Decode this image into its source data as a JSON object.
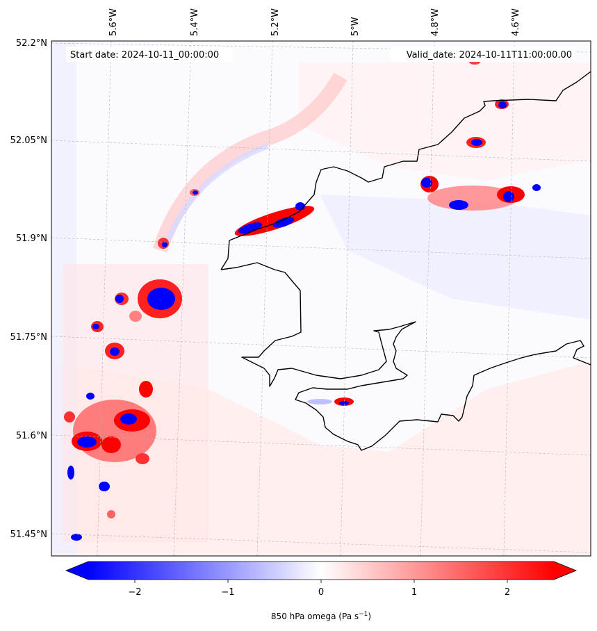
{
  "header": {
    "start_date": "Start date: 2024-10-11_00:00:00",
    "valid_date": "Valid_date: 2024-10-11T11:00:00.00"
  },
  "axes": {
    "longitude_labels": [
      "5.6°W",
      "5.4°W",
      "5.2°W",
      "5°W",
      "4.8°W",
      "4.6°W"
    ],
    "latitude_labels": [
      "52.2°N",
      "52.05°N",
      "51.9°N",
      "51.75°N",
      "51.6°N",
      "51.45°N"
    ]
  },
  "colorbar": {
    "ticks": [
      "−2",
      "−1",
      "0",
      "1",
      "2"
    ],
    "label": "850 hPa omega (Pa s",
    "label_superscript": "−1",
    "label_suffix": ")",
    "min": -2.5,
    "max": 2.5,
    "negative_color": "#0000ff",
    "zero_color": "#ffffff",
    "positive_color": "#ff0000"
  },
  "colors": {
    "coastline": "#000000",
    "gridline": "#b0b0b0"
  }
}
